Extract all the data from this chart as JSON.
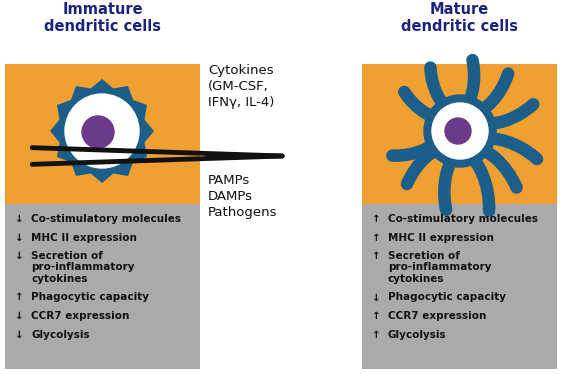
{
  "orange_color": "#F0A030",
  "gray_color": "#AAAAAA",
  "blue_cell_color": "#1B5E8A",
  "white_color": "#FFFFFF",
  "purple_color": "#6B3A8A",
  "black_color": "#111111",
  "dark_blue_title": "#1a237e",
  "title_left": "Immature\ndendritic cells",
  "title_right": "Mature\ndendritic cells",
  "cytokines_text": "Cytokines\n(GM-CSF,\nIFNγ, IL-4)",
  "stimuli_text": "PAMPs\nDAMPs\nPathogens",
  "left_items": [
    [
      "↓",
      "Co-stimulatory molecules"
    ],
    [
      "↓",
      "MHC II expression"
    ],
    [
      "↓",
      "Secretion of\npro-inflammatory\ncytokines"
    ],
    [
      "↑",
      "Phagocytic capacity"
    ],
    [
      "↓",
      "CCR7 expression"
    ],
    [
      "↓",
      "Glycolysis"
    ]
  ],
  "right_items": [
    [
      "↑",
      "Co-stimulatory molecules"
    ],
    [
      "↑",
      "MHC II expression"
    ],
    [
      "↑",
      "Secretion of\npro-inflammatory\ncytokines"
    ],
    [
      "↓",
      "Phagocytic capacity"
    ],
    [
      "↑",
      "CCR7 expression"
    ],
    [
      "↑",
      "Glycolysis"
    ]
  ],
  "bg_color": "#FFFFFF",
  "figsize": [
    5.62,
    3.74
  ],
  "dpi": 100
}
